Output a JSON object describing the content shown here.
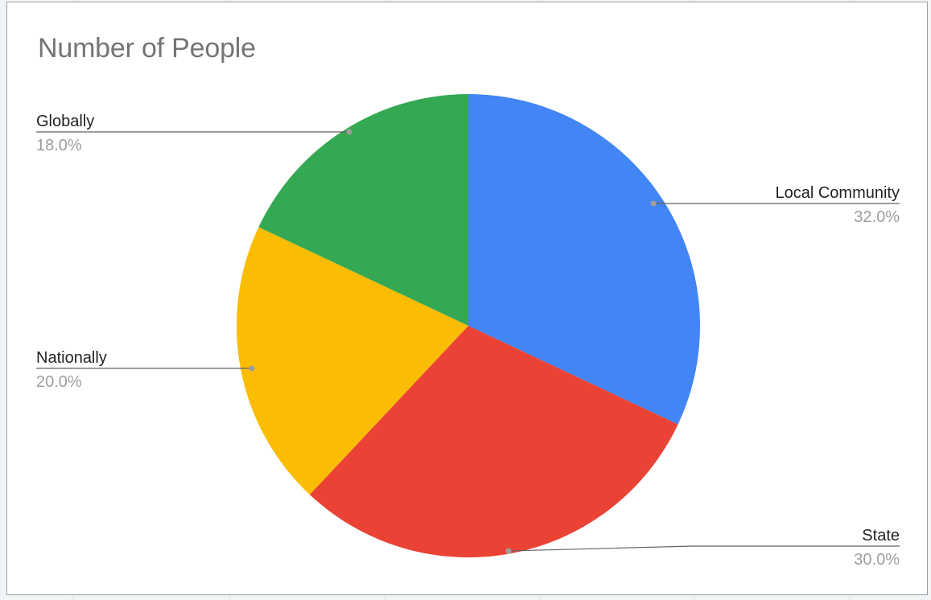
{
  "chart_data": {
    "type": "pie",
    "title": "Number of People",
    "slices": [
      {
        "label": "Local Community",
        "value": 32.0,
        "pct_label": "32.0%",
        "color": "#4285f4"
      },
      {
        "label": "State",
        "value": 30.0,
        "pct_label": "30.0%",
        "color": "#ea4335"
      },
      {
        "label": "Nationally",
        "value": 20.0,
        "pct_label": "20.0%",
        "color": "#fbbc04"
      },
      {
        "label": "Globally",
        "value": 18.0,
        "pct_label": "18.0%",
        "color": "#34a853"
      }
    ],
    "start_angle_deg": 0,
    "direction": "clockwise",
    "legend": "labeled"
  }
}
